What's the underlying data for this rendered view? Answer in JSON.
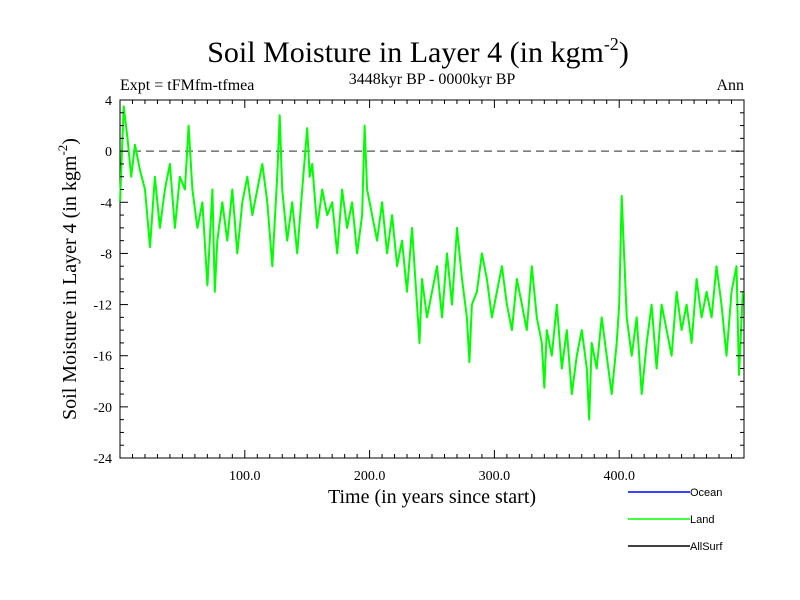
{
  "chart_data": {
    "type": "line",
    "title": "Soil Moisture in Layer 4 (in kgm",
    "title_exp": "-2",
    "title_close": ")",
    "subtitle_left": "Expt = tFMfm-tfmea",
    "subtitle_center": "3448kyr BP - 0000kyr BP",
    "subtitle_right": "Ann",
    "xlabel": "Time (in years since start)",
    "ylabel": "Soil Moisture in Layer 4 (in kgm",
    "ylabel_exp": "-2",
    "ylabel_close": ")",
    "xlim": [
      0,
      500
    ],
    "ylim": [
      -24,
      4
    ],
    "xticks": [
      100,
      200,
      300,
      400
    ],
    "xtick_labels": [
      "100.0",
      "200.0",
      "300.0",
      "400.0"
    ],
    "yticks": [
      4,
      0,
      -4,
      -8,
      -12,
      -16,
      -20,
      -24
    ],
    "ytick_labels": [
      "4",
      "0",
      "-4",
      "-8",
      "-12",
      "-16",
      "-20",
      "-24"
    ],
    "reference_line": 0,
    "legend": [
      {
        "name": "Ocean",
        "color": "#0000ff"
      },
      {
        "name": "Land",
        "color": "#00ff00"
      },
      {
        "name": "AllSurf",
        "color": "#000000"
      }
    ],
    "series": [
      {
        "name": "Land",
        "color": "#00ff00",
        "x": [
          0,
          3,
          6,
          9,
          12,
          16,
          20,
          24,
          28,
          32,
          36,
          40,
          44,
          48,
          52,
          55,
          58,
          62,
          66,
          70,
          74,
          76,
          78,
          82,
          86,
          90,
          94,
          98,
          102,
          106,
          110,
          114,
          118,
          122,
          126,
          128,
          130,
          134,
          138,
          142,
          146,
          150,
          152,
          154,
          158,
          162,
          166,
          170,
          174,
          178,
          182,
          186,
          190,
          194,
          196,
          198,
          202,
          206,
          210,
          214,
          218,
          222,
          226,
          230,
          234,
          238,
          240,
          242,
          246,
          250,
          254,
          258,
          262,
          266,
          270,
          274,
          278,
          280,
          282,
          286,
          290,
          294,
          298,
          302,
          306,
          310,
          314,
          318,
          322,
          326,
          330,
          334,
          338,
          340,
          342,
          346,
          350,
          354,
          358,
          362,
          366,
          370,
          374,
          376,
          378,
          382,
          386,
          390,
          394,
          398,
          400,
          402,
          406,
          410,
          414,
          418,
          422,
          426,
          430,
          434,
          438,
          442,
          446,
          450,
          454,
          458,
          462,
          466,
          470,
          474,
          478,
          482,
          486,
          490,
          494,
          496,
          499
        ],
        "values": [
          -4,
          3.5,
          1,
          -2,
          0.5,
          -1.5,
          -3,
          -7.5,
          -2,
          -6,
          -3,
          -1,
          -6,
          -2,
          -3,
          2,
          -3,
          -6,
          -4,
          -10.5,
          -3,
          -11,
          -7,
          -4,
          -7,
          -3,
          -8,
          -4,
          -2,
          -5,
          -3,
          -1,
          -4,
          -9,
          -2,
          2.8,
          -3,
          -7,
          -4,
          -8,
          -3,
          1.8,
          -2,
          -1,
          -6,
          -3,
          -5,
          -4,
          -8,
          -3,
          -6,
          -4,
          -8,
          -5,
          2,
          -3,
          -5,
          -7,
          -4,
          -8,
          -5,
          -9,
          -7,
          -11,
          -6,
          -12,
          -15,
          -10,
          -13,
          -11,
          -9,
          -13,
          -8,
          -12,
          -6,
          -10,
          -13,
          -16.5,
          -12,
          -11,
          -8,
          -10,
          -13,
          -11,
          -9,
          -12,
          -14,
          -10,
          -12,
          -14,
          -9,
          -13,
          -15,
          -18.5,
          -14,
          -16,
          -12,
          -17,
          -14,
          -19,
          -16,
          -14,
          -17,
          -21,
          -15,
          -17,
          -13,
          -16,
          -19,
          -15,
          -12,
          -3.5,
          -13,
          -16,
          -13,
          -19,
          -15,
          -12,
          -17,
          -12,
          -14,
          -16,
          -11,
          -14,
          -12,
          -15,
          -10,
          -13,
          -11,
          -13,
          -9,
          -12,
          -16,
          -11,
          -9,
          -17.5,
          -11
        ]
      }
    ]
  }
}
